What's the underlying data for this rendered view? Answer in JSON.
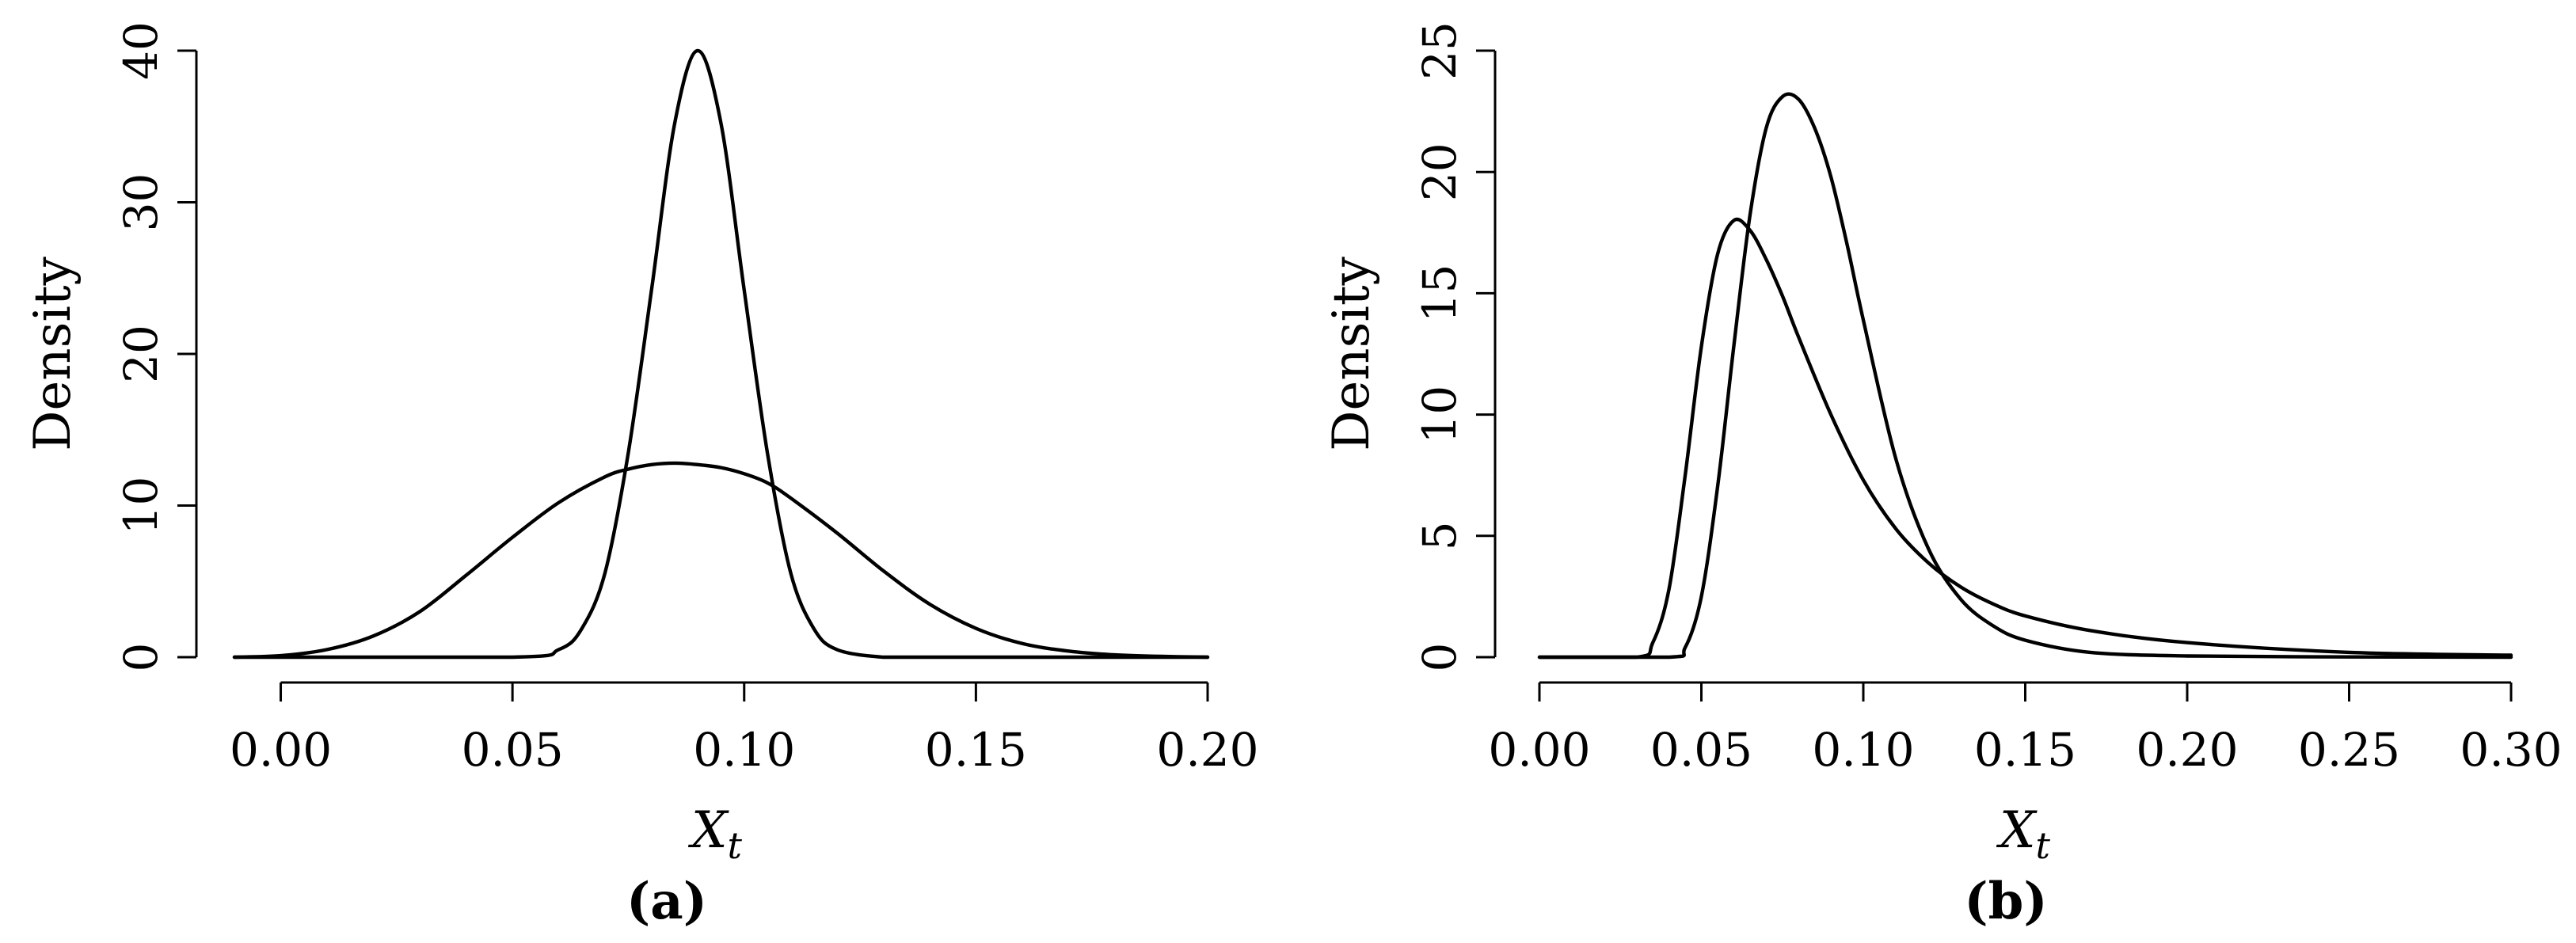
{
  "chart_data": [
    {
      "type": "line",
      "panel_label": "(a)",
      "xlabel": "X",
      "xlabel_sub": "t",
      "ylabel": "Density",
      "xlim": [
        -0.01,
        0.2
      ],
      "ylim": [
        0,
        40
      ],
      "xticks": [
        0.0,
        0.05,
        0.1,
        0.15,
        0.2
      ],
      "xtick_labels": [
        "0.00",
        "0.05",
        "0.10",
        "0.15",
        "0.20"
      ],
      "yticks": [
        0,
        10,
        20,
        30,
        40
      ],
      "ytick_labels": [
        "0",
        "10",
        "20",
        "30",
        "40"
      ],
      "grid": false,
      "series": [
        {
          "x": [
            -0.01,
            0.0,
            0.01,
            0.02,
            0.03,
            0.04,
            0.05,
            0.06,
            0.07,
            0.075,
            0.08,
            0.085,
            0.09,
            0.095,
            0.1,
            0.105,
            0.11,
            0.12,
            0.13,
            0.14,
            0.15,
            0.16,
            0.17,
            0.18,
            0.19,
            0.2
          ],
          "y": [
            0.0,
            0.1,
            0.5,
            1.4,
            3.0,
            5.4,
            7.9,
            10.2,
            11.9,
            12.4,
            12.7,
            12.8,
            12.7,
            12.5,
            12.1,
            11.5,
            10.5,
            8.2,
            5.7,
            3.5,
            1.9,
            0.9,
            0.4,
            0.15,
            0.05,
            0.0
          ]
        },
        {
          "x": [
            -0.01,
            0.05,
            0.06,
            0.065,
            0.07,
            0.075,
            0.08,
            0.085,
            0.09,
            0.095,
            0.1,
            0.105,
            0.11,
            0.115,
            0.12,
            0.13,
            0.14,
            0.2
          ],
          "y": [
            0.0,
            0.0,
            0.5,
            1.9,
            5.6,
            13.5,
            24.2,
            35.2,
            40.0,
            35.2,
            24.2,
            13.5,
            5.6,
            1.9,
            0.5,
            0.0,
            0.0,
            0.0
          ]
        }
      ]
    },
    {
      "type": "line",
      "panel_label": "(b)",
      "xlabel": "X",
      "xlabel_sub": "t",
      "ylabel": "Density",
      "xlim": [
        0.0,
        0.3
      ],
      "ylim": [
        0,
        25
      ],
      "xticks": [
        0.0,
        0.05,
        0.1,
        0.15,
        0.2,
        0.25,
        0.3
      ],
      "xtick_labels": [
        "0.00",
        "0.05",
        "0.10",
        "0.15",
        "0.20",
        "0.25",
        "0.30"
      ],
      "yticks": [
        0,
        5,
        10,
        15,
        20,
        25
      ],
      "ytick_labels": [
        "0",
        "5",
        "10",
        "15",
        "20",
        "25"
      ],
      "grid": false,
      "series": [
        {
          "x": [
            0.0,
            0.03,
            0.035,
            0.04,
            0.045,
            0.05,
            0.055,
            0.06,
            0.065,
            0.07,
            0.075,
            0.08,
            0.09,
            0.1,
            0.11,
            0.12,
            0.13,
            0.14,
            0.15,
            0.17,
            0.2,
            0.25,
            0.3
          ],
          "y": [
            0.0,
            0.0,
            0.6,
            2.8,
            7.5,
            12.8,
            16.6,
            18.0,
            17.6,
            16.4,
            14.9,
            13.2,
            10.0,
            7.3,
            5.3,
            3.9,
            2.9,
            2.2,
            1.7,
            1.1,
            0.6,
            0.2,
            0.08
          ]
        },
        {
          "x": [
            0.0,
            0.04,
            0.045,
            0.05,
            0.055,
            0.06,
            0.065,
            0.07,
            0.075,
            0.08,
            0.085,
            0.09,
            0.095,
            0.1,
            0.11,
            0.12,
            0.13,
            0.14,
            0.15,
            0.17,
            0.2,
            0.25,
            0.3
          ],
          "y": [
            0.0,
            0.0,
            0.4,
            2.5,
            7.0,
            12.8,
            18.2,
            21.8,
            23.1,
            23.0,
            21.8,
            19.8,
            17.0,
            13.9,
            8.2,
            4.5,
            2.4,
            1.3,
            0.7,
            0.2,
            0.05,
            0.01,
            0.0
          ]
        }
      ]
    }
  ]
}
